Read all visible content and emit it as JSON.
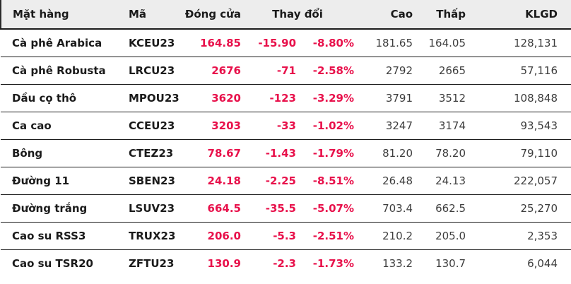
{
  "colors": {
    "negative": "#e8114b",
    "header_bg": "#ededed",
    "border": "#1c1c1c",
    "text": "#1b1b1b",
    "muted": "#3d3d3d"
  },
  "table": {
    "headers": {
      "name": "Mặt hàng",
      "code": "Mã",
      "close": "Đóng cửa",
      "change": "Thay đổi",
      "high": "Cao",
      "low": "Thấp",
      "volume": "KLGD"
    },
    "rows": [
      {
        "name": "Cà phê Arabica",
        "code": "KCEU23",
        "close": "164.85",
        "change": "-15.90",
        "change_pct": "-8.80%",
        "high": "181.65",
        "low": "164.05",
        "volume": "128,131"
      },
      {
        "name": "Cà phê Robusta",
        "code": "LRCU23",
        "close": "2676",
        "change": "-71",
        "change_pct": "-2.58%",
        "high": "2792",
        "low": "2665",
        "volume": "57,116"
      },
      {
        "name": "Dầu cọ thô",
        "code": "MPOU23",
        "close": "3620",
        "change": "-123",
        "change_pct": "-3.29%",
        "high": "3791",
        "low": "3512",
        "volume": "108,848"
      },
      {
        "name": "Ca cao",
        "code": "CCEU23",
        "close": "3203",
        "change": "-33",
        "change_pct": "-1.02%",
        "high": "3247",
        "low": "3174",
        "volume": "93,543"
      },
      {
        "name": "Bông",
        "code": "CTEZ23",
        "close": "78.67",
        "change": "-1.43",
        "change_pct": "-1.79%",
        "high": "81.20",
        "low": "78.20",
        "volume": "79,110"
      },
      {
        "name": "Đường 11",
        "code": "SBEN23",
        "close": "24.18",
        "change": "-2.25",
        "change_pct": "-8.51%",
        "high": "26.48",
        "low": "24.13",
        "volume": "222,057"
      },
      {
        "name": "Đường trắng",
        "code": "LSUV23",
        "close": "664.5",
        "change": "-35.5",
        "change_pct": "-5.07%",
        "high": "703.4",
        "low": "662.5",
        "volume": "25,270"
      },
      {
        "name": "Cao su RSS3",
        "code": "TRUX23",
        "close": "206.0",
        "change": "-5.3",
        "change_pct": "-2.51%",
        "high": "210.2",
        "low": "205.0",
        "volume": "2,353"
      },
      {
        "name": "Cao su TSR20",
        "code": "ZFTU23",
        "close": "130.9",
        "change": "-2.3",
        "change_pct": "-1.73%",
        "high": "133.2",
        "low": "130.7",
        "volume": "6,044"
      }
    ]
  }
}
